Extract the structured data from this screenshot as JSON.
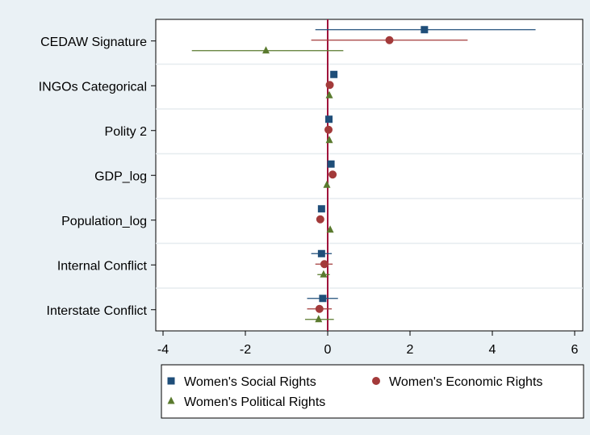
{
  "chart_data": {
    "type": "scatter",
    "subtype": "coefficient-plot-with-confidence-intervals",
    "title": "",
    "xlabel": "",
    "ylabel": "",
    "xlim": [
      -4,
      6
    ],
    "x_ticks": [
      -4,
      -2,
      0,
      2,
      4,
      6
    ],
    "reference_line_x": 0,
    "grid": "horizontal band separators",
    "legend_position": "bottom",
    "categories": [
      "CEDAW Signature",
      "INGOs Categorical",
      "Polity 2",
      "GDP_log",
      "Population_log",
      "Internal Conflict",
      "Interstate Conflict"
    ],
    "series": [
      {
        "name": "Women's Social Rights",
        "marker": "square",
        "color": "#1f4e79",
        "points": [
          {
            "estimate": 2.35,
            "ci_low": -0.3,
            "ci_high": 5.05
          },
          {
            "estimate": 0.15,
            "ci_low": 0.12,
            "ci_high": 0.18
          },
          {
            "estimate": 0.03,
            "ci_low": 0.01,
            "ci_high": 0.05
          },
          {
            "estimate": 0.08,
            "ci_low": 0.05,
            "ci_high": 0.11
          },
          {
            "estimate": -0.15,
            "ci_low": -0.2,
            "ci_high": -0.1
          },
          {
            "estimate": -0.15,
            "ci_low": -0.4,
            "ci_high": 0.1
          },
          {
            "estimate": -0.12,
            "ci_low": -0.5,
            "ci_high": 0.25
          }
        ]
      },
      {
        "name": "Women's Economic Rights",
        "marker": "circle",
        "color": "#a33a3a",
        "points": [
          {
            "estimate": 1.5,
            "ci_low": -0.4,
            "ci_high": 3.4
          },
          {
            "estimate": 0.05,
            "ci_low": 0.02,
            "ci_high": 0.08
          },
          {
            "estimate": 0.02,
            "ci_low": 0.0,
            "ci_high": 0.04
          },
          {
            "estimate": 0.12,
            "ci_low": 0.08,
            "ci_high": 0.16
          },
          {
            "estimate": -0.18,
            "ci_low": -0.23,
            "ci_high": -0.13
          },
          {
            "estimate": -0.08,
            "ci_low": -0.3,
            "ci_high": 0.12
          },
          {
            "estimate": -0.2,
            "ci_low": -0.5,
            "ci_high": 0.1
          }
        ]
      },
      {
        "name": "Women's Political Rights",
        "marker": "triangle",
        "color": "#5a7a2e",
        "points": [
          {
            "estimate": -1.5,
            "ci_low": -3.3,
            "ci_high": 0.38
          },
          {
            "estimate": 0.04,
            "ci_low": 0.01,
            "ci_high": 0.07
          },
          {
            "estimate": 0.04,
            "ci_low": 0.01,
            "ci_high": 0.07
          },
          {
            "estimate": -0.02,
            "ci_low": -0.06,
            "ci_high": 0.02
          },
          {
            "estimate": 0.06,
            "ci_low": 0.02,
            "ci_high": 0.1
          },
          {
            "estimate": -0.1,
            "ci_low": -0.25,
            "ci_high": 0.05
          },
          {
            "estimate": -0.22,
            "ci_low": -0.55,
            "ci_high": 0.15
          }
        ]
      }
    ],
    "colors": {
      "background": "#eaf1f5",
      "plot_area": "#ffffff",
      "reference_line": "#a0143c"
    }
  }
}
